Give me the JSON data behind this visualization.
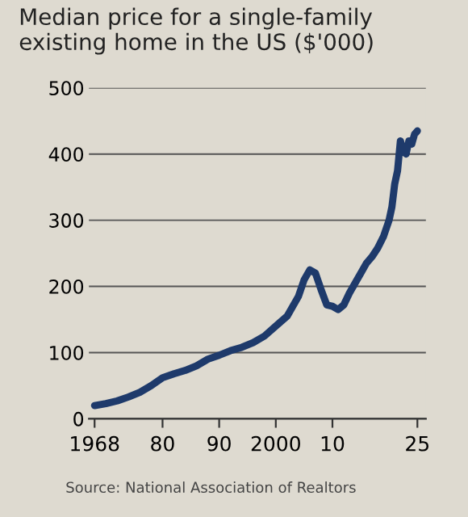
{
  "chart_data": {
    "type": "line",
    "title": "Median price for a single-family existing home in the US ($'000)",
    "annotations": [
      "Source: National Association of Realtors"
    ],
    "x": [
      1968,
      1970,
      1972,
      1974,
      1976,
      1978,
      1980,
      1982,
      1984,
      1986,
      1988,
      1990,
      1992,
      1994,
      1996,
      1998,
      2000,
      2002,
      2004,
      2005,
      2006,
      2007,
      2008,
      2009,
      2010,
      2011,
      2012,
      2013,
      2014,
      2015,
      2016,
      2017,
      2018,
      2019,
      2020,
      2020.5,
      2021,
      2021.5,
      2022,
      2022.5,
      2023,
      2023.5,
      2024,
      2024.5,
      2025
    ],
    "series": [
      {
        "color": "#1e3a6b",
        "values": [
          20,
          23,
          27,
          33,
          40,
          50,
          62,
          68,
          73,
          80,
          90,
          96,
          103,
          108,
          115,
          125,
          140,
          155,
          185,
          210,
          225,
          220,
          195,
          172,
          170,
          165,
          172,
          190,
          205,
          220,
          235,
          245,
          258,
          275,
          300,
          320,
          355,
          375,
          420,
          405,
          400,
          420,
          415,
          430,
          435
        ]
      }
    ],
    "xlim": [
      1967,
      2026.5
    ],
    "ylim": [
      0,
      500
    ],
    "xticks": [
      {
        "value": 1968,
        "label": "1968"
      },
      {
        "value": 1980,
        "label": "80"
      },
      {
        "value": 1990,
        "label": "90"
      },
      {
        "value": 2000,
        "label": "2000"
      },
      {
        "value": 2010,
        "label": "10"
      },
      {
        "value": 2025,
        "label": "25"
      }
    ],
    "yticks": [
      0,
      100,
      200,
      300,
      400,
      500
    ],
    "grid": "y",
    "line_style": "solid",
    "marker": "none"
  }
}
